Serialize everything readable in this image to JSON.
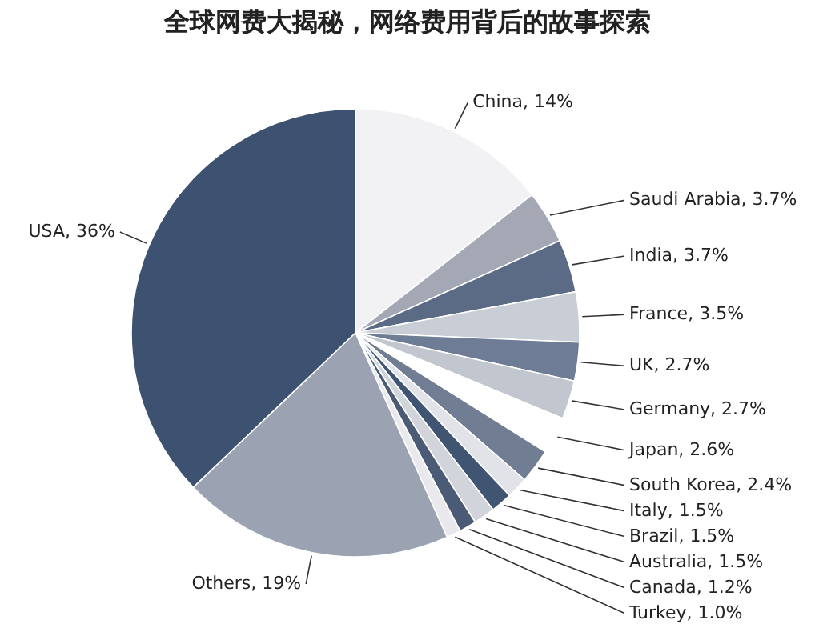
{
  "chart_data": {
    "type": "pie",
    "title": "全球网费大揭秘，网络费用背后的故事探索",
    "categories": [
      "China",
      "Saudi Arabia",
      "India",
      "France",
      "UK",
      "Germany",
      "Japan",
      "South Korea",
      "Italy",
      "Brazil",
      "Australia",
      "Canada",
      "Turkey",
      "Others",
      "USA"
    ],
    "values": [
      14,
      3.7,
      3.7,
      3.5,
      2.7,
      2.7,
      2.6,
      2.4,
      1.5,
      1.5,
      1.5,
      1.2,
      1.0,
      19,
      36
    ],
    "value_labels": [
      "14%",
      "3.7%",
      "3.7%",
      "3.5%",
      "2.7%",
      "2.7%",
      "2.6%",
      "2.4%",
      "1.5%",
      "1.5%",
      "1.5%",
      "1.2%",
      "1.0%",
      "19%",
      "36%"
    ],
    "colors": [
      "#f2f2f4",
      "#a3a8b4",
      "#5b6b86",
      "#c9cdd6",
      "#6e7c95",
      "#c2c6ce",
      "#ffffff",
      "#717d92",
      "#e1e3e8",
      "#3f5572",
      "#d1d5db",
      "#4b5b75",
      "#e9e9ed",
      "#9ba3b3",
      "#3d5270"
    ]
  }
}
